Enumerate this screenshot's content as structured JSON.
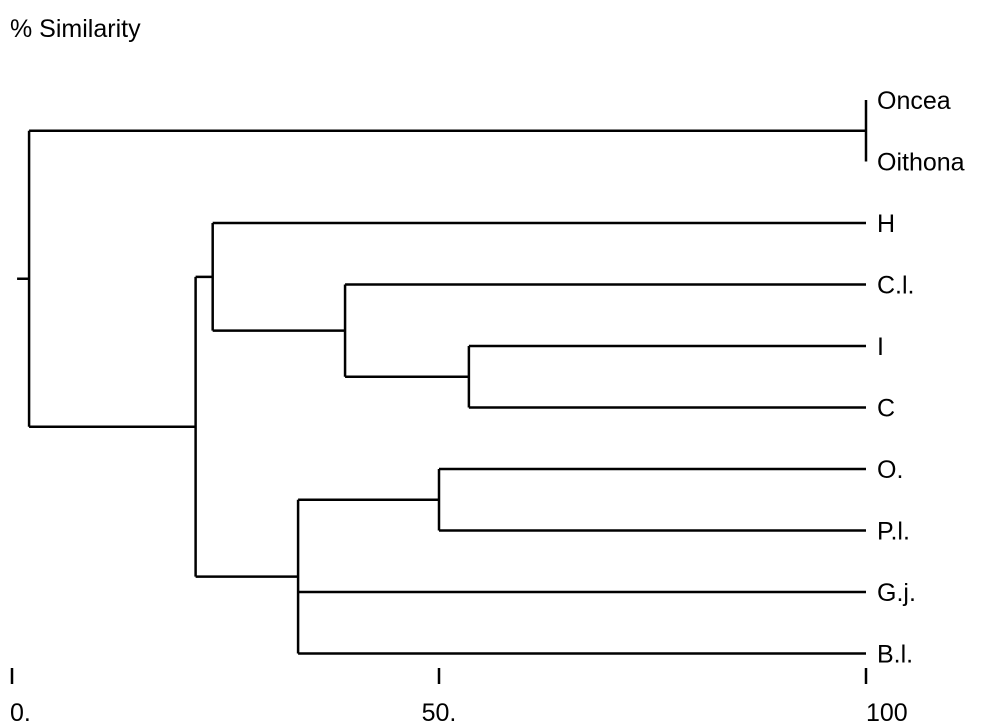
{
  "chart_data": {
    "type": "dendrogram",
    "title": "% Similarity",
    "xlim": [
      0,
      100
    ],
    "ticks": [
      {
        "value": 0,
        "label": "0."
      },
      {
        "value": 50,
        "label": "50."
      },
      {
        "value": 100,
        "label": "100"
      }
    ],
    "leaves": [
      "Oncea",
      "Oithona",
      "H",
      "C.l.",
      "I",
      "C",
      "O.",
      "P.l.",
      "G.j.",
      "B.l."
    ],
    "clusters": [
      {
        "id": "c1",
        "members": [
          "Oncea",
          "Oithona"
        ],
        "similarity": 100
      },
      {
        "id": "c2",
        "members": [
          "I",
          "C"
        ],
        "similarity": 53.5
      },
      {
        "id": "c3",
        "members": [
          "C.l.",
          "c2"
        ],
        "similarity": 39
      },
      {
        "id": "c4",
        "members": [
          "H",
          "c3"
        ],
        "similarity": 23.5
      },
      {
        "id": "c5",
        "members": [
          "O.",
          "P.l."
        ],
        "similarity": 50
      },
      {
        "id": "c6",
        "members": [
          "c5",
          "G.j.",
          "B.l."
        ],
        "similarity": 33.5
      },
      {
        "id": "c7",
        "members": [
          "c4",
          "c6"
        ],
        "similarity": 21.5
      },
      {
        "id": "c8",
        "members": [
          "c1",
          "c7"
        ],
        "similarity": 2
      }
    ],
    "line_color": "#000000"
  }
}
